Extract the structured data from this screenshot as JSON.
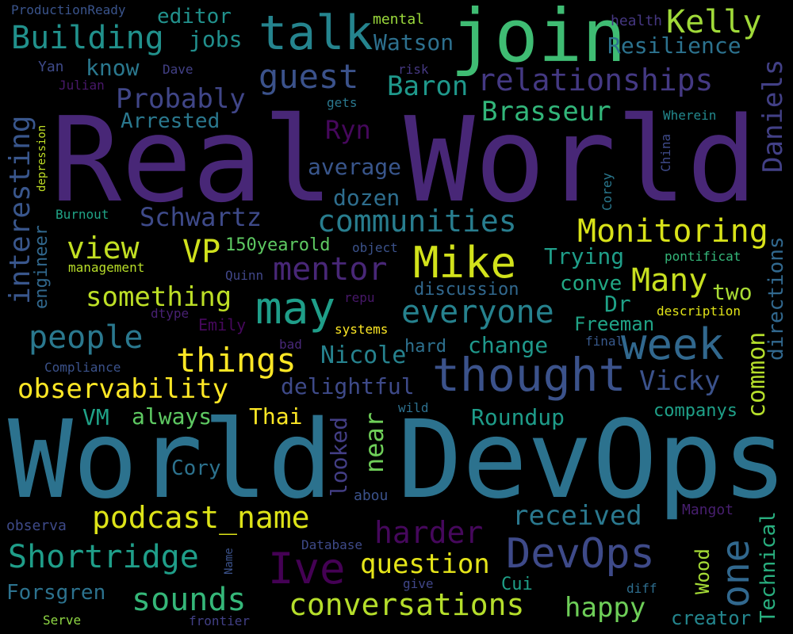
{
  "words": [
    {
      "text": "Real World",
      "color": "#482777"
    },
    {
      "text": "World DevOps",
      "color": "#2c728e"
    },
    {
      "text": "join",
      "color": "#3fbc73"
    },
    {
      "text": "talk",
      "color": "#25848e"
    },
    {
      "text": "thought",
      "color": "#3b528b"
    },
    {
      "text": "Mike",
      "color": "#d2e21b"
    },
    {
      "text": "may",
      "color": "#1f9e89"
    },
    {
      "text": "week",
      "color": "#31688e"
    },
    {
      "text": "Ive",
      "color": "#440154"
    },
    {
      "text": "DevOps",
      "color": "#3e4a89"
    },
    {
      "text": "one",
      "color": "#31688e"
    },
    {
      "text": "podcast_name",
      "color": "#dde318"
    },
    {
      "text": "Shortridge",
      "color": "#1f9e89"
    },
    {
      "text": "conversations",
      "color": "#b5de2b"
    },
    {
      "text": "Monitoring",
      "color": "#d8e219"
    },
    {
      "text": "communities",
      "color": "#287d8e"
    },
    {
      "text": "relationships",
      "color": "#443983"
    },
    {
      "text": "Building",
      "color": "#21918c"
    },
    {
      "text": "guest",
      "color": "#3b528b"
    },
    {
      "text": "mentor",
      "color": "#482777"
    },
    {
      "text": "everyone",
      "color": "#26828e"
    },
    {
      "text": "things",
      "color": "#fde725"
    },
    {
      "text": "people",
      "color": "#2a788e"
    },
    {
      "text": "observability",
      "color": "#fde725"
    },
    {
      "text": "sounds",
      "color": "#35b779"
    },
    {
      "text": "Kelly",
      "color": "#a0da39"
    },
    {
      "text": "Many",
      "color": "#c8e020"
    },
    {
      "text": "harder",
      "color": "#46085c"
    },
    {
      "text": "question",
      "color": "#e5e419"
    },
    {
      "text": "received",
      "color": "#2a788e"
    },
    {
      "text": "view",
      "color": "#c2df23"
    },
    {
      "text": "VP",
      "color": "#d0e11c"
    },
    {
      "text": "something",
      "color": "#bddf26"
    },
    {
      "text": "Schwartz",
      "color": "#3e4a89"
    },
    {
      "text": "Brasseur",
      "color": "#32b67a"
    },
    {
      "text": "Vicky",
      "color": "#3b528b"
    },
    {
      "text": "happy",
      "color": "#6ece58"
    },
    {
      "text": "interesting",
      "color": "#39568c"
    },
    {
      "text": "Daniels",
      "color": "#424086"
    },
    {
      "text": "Probably",
      "color": "#404688"
    },
    {
      "text": "Baron",
      "color": "#1f988b"
    },
    {
      "text": "Resilience",
      "color": "#2c728e"
    },
    {
      "text": "Watson",
      "color": "#2d708e"
    },
    {
      "text": "Arrested",
      "color": "#2a788e"
    },
    {
      "text": "Ryn",
      "color": "#46085c"
    },
    {
      "text": "average",
      "color": "#39568c"
    },
    {
      "text": "dozen",
      "color": "#2e6e8e"
    },
    {
      "text": "delightful",
      "color": "#3e4a89"
    },
    {
      "text": "Nicole",
      "color": "#26828e"
    },
    {
      "text": "change",
      "color": "#1f988b"
    },
    {
      "text": "Trying",
      "color": "#1f9e89"
    },
    {
      "text": "conve",
      "color": "#22a884"
    },
    {
      "text": "Dr",
      "color": "#1fa187"
    },
    {
      "text": "two",
      "color": "#a8db34"
    },
    {
      "text": "common",
      "color": "#b5de2b"
    },
    {
      "text": "directions",
      "color": "#31688e"
    },
    {
      "text": "Freeman",
      "color": "#20a386"
    },
    {
      "text": "Roundup",
      "color": "#1e9c89"
    },
    {
      "text": "companys",
      "color": "#1fa088"
    },
    {
      "text": "Thai",
      "color": "#fde725"
    },
    {
      "text": "always",
      "color": "#5ec962"
    },
    {
      "text": "VM",
      "color": "#1fa187"
    },
    {
      "text": "Cory",
      "color": "#2c728e"
    },
    {
      "text": "near",
      "color": "#6ece58"
    },
    {
      "text": "looked",
      "color": "#433e85"
    },
    {
      "text": "editor",
      "color": "#21918c"
    },
    {
      "text": "jobs",
      "color": "#218f8d"
    },
    {
      "text": "know",
      "color": "#2a788e"
    },
    {
      "text": "engineer",
      "color": "#31688e"
    },
    {
      "text": "150yearold",
      "color": "#5ec962"
    },
    {
      "text": "discussion",
      "color": "#31688e"
    },
    {
      "text": "hard",
      "color": "#2d708e"
    },
    {
      "text": "Wood",
      "color": "#a5db36"
    },
    {
      "text": "Technical",
      "color": "#29af7f"
    },
    {
      "text": "creator",
      "color": "#24868e"
    },
    {
      "text": "Forsgren",
      "color": "#2c728e"
    },
    {
      "text": "Cui",
      "color": "#1fa088"
    },
    {
      "text": "ProductionReady",
      "color": "#3a548c"
    },
    {
      "text": "mental",
      "color": "#9bd93c"
    },
    {
      "text": "health",
      "color": "#453781"
    },
    {
      "text": "Yan",
      "color": "#3e4a89"
    },
    {
      "text": "Dave",
      "color": "#424086"
    },
    {
      "text": "risk",
      "color": "#453882"
    },
    {
      "text": "Julian",
      "color": "#48186a"
    },
    {
      "text": "gets",
      "color": "#2a788e"
    },
    {
      "text": "Wherein",
      "color": "#23898e"
    },
    {
      "text": "China",
      "color": "#3e4a89"
    },
    {
      "text": "Corey",
      "color": "#2a788e"
    },
    {
      "text": "depression",
      "color": "#c0df25"
    },
    {
      "text": "Burnout",
      "color": "#20a386"
    },
    {
      "text": "management",
      "color": "#b8de29"
    },
    {
      "text": "object",
      "color": "#3b528b"
    },
    {
      "text": "pontificat",
      "color": "#34b679"
    },
    {
      "text": "Quinn",
      "color": "#404688"
    },
    {
      "text": "repu",
      "color": "#48186a"
    },
    {
      "text": "dtype",
      "color": "#482173"
    },
    {
      "text": "Emily",
      "color": "#46085c"
    },
    {
      "text": "systems",
      "color": "#fde725"
    },
    {
      "text": "description",
      "color": "#e2e418"
    },
    {
      "text": "final",
      "color": "#38598c"
    },
    {
      "text": "bad",
      "color": "#482878"
    },
    {
      "text": "Compliance",
      "color": "#3b528b"
    },
    {
      "text": "wild",
      "color": "#2d708e"
    },
    {
      "text": "abou",
      "color": "#3b528b"
    },
    {
      "text": "observa",
      "color": "#3e4a89"
    },
    {
      "text": "Database",
      "color": "#3e4a89"
    },
    {
      "text": "Name",
      "color": "#3b528b"
    },
    {
      "text": "give",
      "color": "#404688"
    },
    {
      "text": "diff",
      "color": "#2e6e8e"
    },
    {
      "text": "Mangot",
      "color": "#481f70"
    },
    {
      "text": "Serve",
      "color": "#8fd744"
    },
    {
      "text": "frontier",
      "color": "#424086"
    }
  ]
}
